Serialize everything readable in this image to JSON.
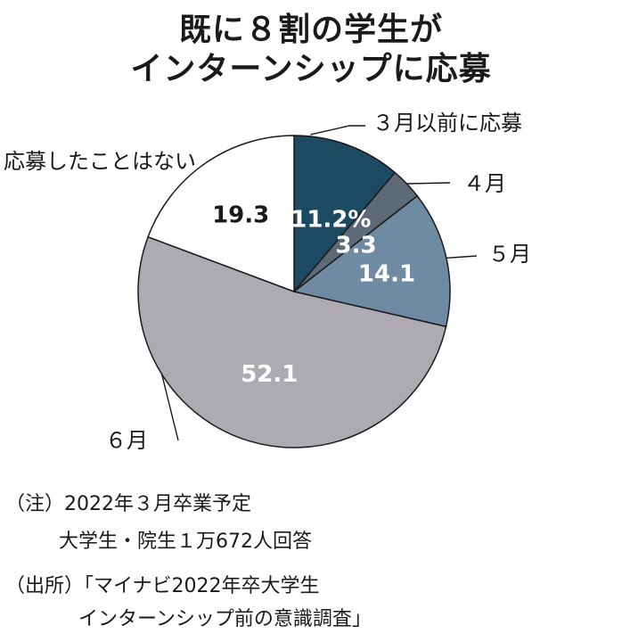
{
  "title": {
    "line1": "既に８割の学生が",
    "line2": "インターンシップに応募"
  },
  "chart_data": {
    "type": "pie",
    "unit": "%",
    "slices": [
      {
        "name": "３月以前に応募",
        "value": 11.2,
        "label": "11.2%",
        "color": "#1d4a63",
        "text_color": "#ffffff"
      },
      {
        "name": "４月",
        "value": 3.3,
        "label": "3.3",
        "color": "#5e6a78",
        "text_color": "#ffffff"
      },
      {
        "name": "５月",
        "value": 14.1,
        "label": "14.1",
        "color": "#6f8ba4",
        "text_color": "#ffffff"
      },
      {
        "name": "６月",
        "value": 52.1,
        "label": "52.1",
        "color": "#adaab2",
        "text_color": "#ffffff"
      },
      {
        "name": "応募したことはない",
        "value": 19.3,
        "label": "19.3",
        "color": "#ffffff",
        "text_color": "#1a1a1a"
      }
    ]
  },
  "notes": {
    "note1_line1": "（注）2022年３月卒業予定",
    "note1_line2": "大学生・院生１万672人回答",
    "source_line1": "（出所）「マイナビ2022年卒大学生",
    "source_line2": "インターンシップ前の意識調査」"
  }
}
